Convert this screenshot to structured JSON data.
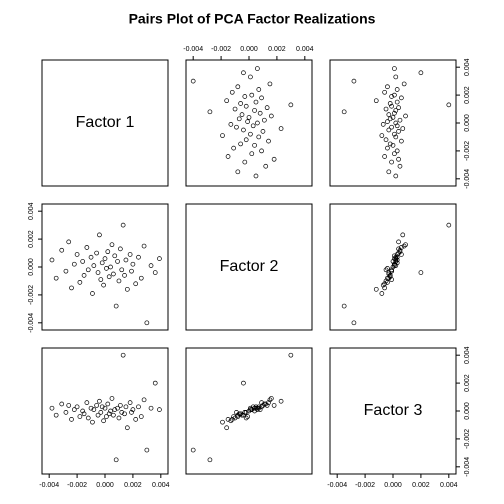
{
  "chart_data": {
    "type": "scatter-matrix",
    "title": "Pairs Plot of PCA Factor Realizations",
    "lim": [
      -0.0043,
      0.0043
    ],
    "ticks": [
      -0.004,
      -0.002,
      {
        "value": 0,
        "label": "0.000"
      },
      0.002,
      0.004
    ],
    "variables": [
      {
        "name": "Factor 1",
        "values": [
          -0.0038,
          -0.0035,
          -0.0031,
          -0.0028,
          -0.0026,
          -0.0024,
          -0.0022,
          -0.002,
          -0.0018,
          -0.0016,
          -0.0015,
          -0.0013,
          -0.0012,
          -0.001,
          -0.0009,
          -0.0008,
          -0.0006,
          -0.0005,
          -0.0004,
          -0.0003,
          -0.0002,
          -0.0001,
          0.0,
          0.0001,
          0.0002,
          0.0003,
          0.0004,
          0.0005,
          0.0006,
          0.0007,
          0.0008,
          0.0009,
          0.001,
          0.0011,
          0.0012,
          0.0013,
          0.0014,
          0.0015,
          0.0016,
          0.0018,
          0.0019,
          0.002,
          0.0022,
          0.0024,
          0.0026,
          0.0028,
          0.003,
          0.0033,
          0.0036,
          0.0039
        ]
      },
      {
        "name": "Factor 2",
        "values": [
          0.0005,
          -0.0008,
          0.0012,
          -0.0003,
          0.0018,
          -0.0015,
          0.0002,
          0.0009,
          -0.0011,
          0.0004,
          -0.0006,
          0.0014,
          -0.0002,
          0.0007,
          -0.0019,
          0.0001,
          0.001,
          -0.0004,
          0.0023,
          -0.0009,
          0.0003,
          -0.0013,
          0.0006,
          -0.0001,
          0.0011,
          -0.0007,
          0.0,
          0.0016,
          -0.0005,
          0.0008,
          -0.0028,
          0.0004,
          -0.001,
          0.0013,
          -0.0002,
          0.003,
          -0.0006,
          0.0005,
          -0.0016,
          0.0009,
          -0.0003,
          0.0002,
          -0.0012,
          0.0007,
          -0.0008,
          0.0015,
          -0.004,
          0.0001,
          -0.0004,
          0.0006
        ]
      },
      {
        "name": "Factor 3",
        "values": [
          0.0002,
          -0.0003,
          0.0005,
          -0.0001,
          0.0004,
          -0.0006,
          0.0001,
          0.0003,
          -0.0004,
          0.0,
          -0.0002,
          0.0006,
          -0.0005,
          0.0002,
          -0.0008,
          0.0001,
          0.0004,
          -0.0003,
          0.0007,
          -0.0001,
          0.0003,
          -0.0007,
          0.0002,
          -0.0004,
          0.0005,
          -0.0002,
          0.0,
          0.0009,
          -0.0003,
          0.0001,
          -0.0035,
          0.0002,
          -0.0005,
          0.0004,
          -0.0001,
          0.004,
          -0.0002,
          0.0003,
          -0.0012,
          0.0006,
          -0.0001,
          0.0001,
          -0.0006,
          0.0003,
          -0.0004,
          0.0008,
          -0.0028,
          0.0002,
          0.002,
          0.0001
        ]
      }
    ]
  }
}
